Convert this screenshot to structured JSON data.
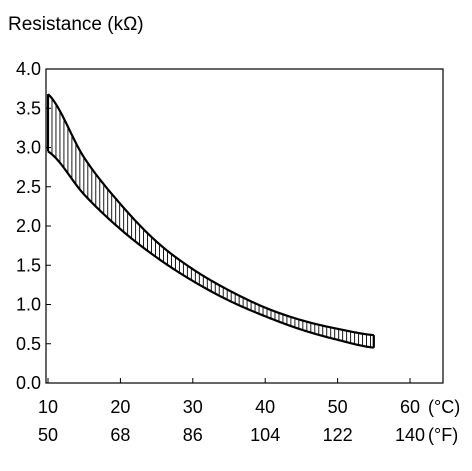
{
  "chart_data": {
    "type": "area",
    "title": "",
    "ylabel": "Resistance (kΩ)",
    "xlabel": "",
    "xlim": [
      10,
      60
    ],
    "ylim": [
      0.0,
      4.0
    ],
    "grid": false,
    "y_ticks": [
      "0.0",
      "0.5",
      "1.0",
      "1.5",
      "2.0",
      "2.5",
      "3.0",
      "3.5",
      "4.0"
    ],
    "y_tick_values": [
      0.0,
      0.5,
      1.0,
      1.5,
      2.0,
      2.5,
      3.0,
      3.5,
      4.0
    ],
    "x_ticks_celsius": [
      "10",
      "20",
      "30",
      "40",
      "50",
      "60"
    ],
    "x_ticks_fahrenheit": [
      "50",
      "68",
      "86",
      "104",
      "122",
      "140"
    ],
    "x_tick_values": [
      10,
      20,
      30,
      40,
      50,
      60
    ],
    "x_unit_celsius": "(°C)",
    "x_unit_fahrenheit": "(°F)",
    "x": [
      10,
      15,
      20,
      25,
      30,
      35,
      40,
      45,
      50,
      55
    ],
    "series": [
      {
        "values": [
          3.68,
          2.87,
          2.28,
          1.8,
          1.45,
          1.18,
          0.96,
          0.8,
          0.69,
          0.61
        ]
      },
      {
        "values": [
          2.95,
          2.4,
          1.96,
          1.6,
          1.3,
          1.05,
          0.85,
          0.68,
          0.55,
          0.45
        ]
      }
    ],
    "band_style": "vertical-hatch",
    "colors": {
      "line": "#000000",
      "hatch": "#000000",
      "background": "#ffffff"
    }
  }
}
